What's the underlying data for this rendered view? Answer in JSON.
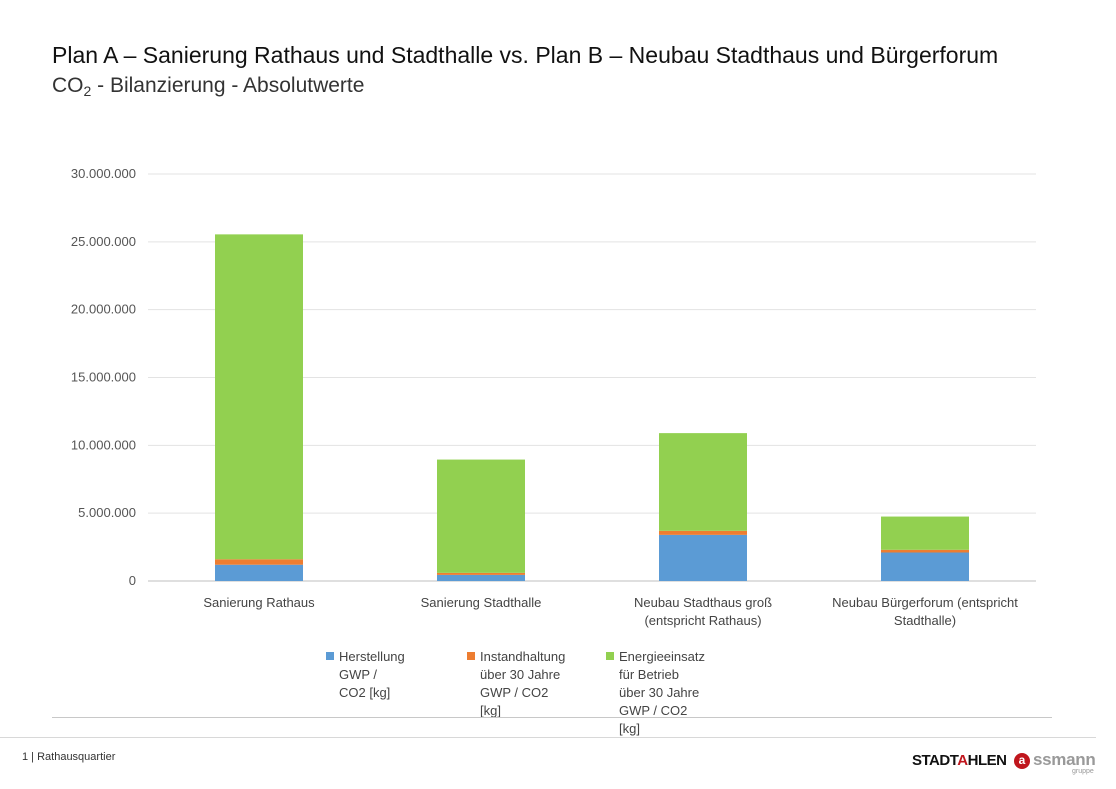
{
  "header": {
    "title": "Plan A – Sanierung Rathaus und Stadthalle vs. Plan B – Neubau Stadthaus und Bürgerforum",
    "subtitle_prefix": "CO",
    "subtitle_sub": "2",
    "subtitle_suffix": " - Bilanzierung - Absolutwerte"
  },
  "chart_data": {
    "type": "bar",
    "stacked": true,
    "categories": [
      "Sanierung Rathaus",
      "Sanierung Stadthalle",
      "Neubau Stadthaus groß\n(entspricht Rathaus)",
      "Neubau Bürgerforum (entspricht\nStadthalle)"
    ],
    "series": [
      {
        "name": "Herstellung\nGWP / CO2 [kg]",
        "color": "#5b9bd5",
        "values": [
          1200000,
          450000,
          3400000,
          2100000
        ]
      },
      {
        "name": "Instandhaltung\nüber 30 Jahre\nGWP / CO2 [kg]",
        "color": "#ed7d31",
        "values": [
          400000,
          150000,
          300000,
          200000
        ]
      },
      {
        "name": "Energieeinsatz für Betrieb\nüber 30 Jahre\nGWP / CO2 [kg]",
        "color": "#92d050",
        "values": [
          23950000,
          8350000,
          7200000,
          2450000
        ]
      }
    ],
    "ylim": [
      0,
      30000000
    ],
    "yticks": [
      0,
      5000000,
      10000000,
      15000000,
      20000000,
      25000000,
      30000000
    ],
    "ytick_labels": [
      "0",
      "5.000.000",
      "10.000.000",
      "15.000.000",
      "20.000.000",
      "25.000.000",
      "30.000.000"
    ],
    "grid": true,
    "legend_position": "bottom"
  },
  "footer": {
    "page_label": "1 | Rathausquartier",
    "logo1_part1": "STADT",
    "logo1_accent": "A",
    "logo1_part2": "HLEN",
    "logo2_mark": "a",
    "logo2_word": "ssmann",
    "logo2_sub": "gruppe"
  }
}
